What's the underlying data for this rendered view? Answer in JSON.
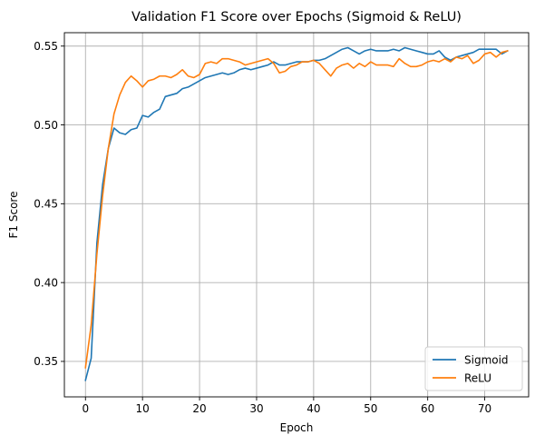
{
  "chart_data": {
    "type": "line",
    "title": "Validation F1 Score over Epochs (Sigmoid & ReLU)",
    "xlabel": "Epoch",
    "ylabel": "F1 Score",
    "xlim": [
      -3.7,
      77.7
    ],
    "ylim": [
      0.3275,
      0.5585
    ],
    "xticks": [
      0,
      10,
      20,
      30,
      40,
      50,
      60,
      70
    ],
    "yticks": [
      0.35,
      0.4,
      0.45,
      0.5,
      0.55
    ],
    "ytick_labels": [
      "0.35",
      "0.40",
      "0.45",
      "0.50",
      "0.55"
    ],
    "grid": true,
    "legend_position": "lower-right",
    "series": [
      {
        "name": "Sigmoid",
        "color": "#1f77b4",
        "x": [
          0,
          1,
          2,
          3,
          4,
          5,
          6,
          7,
          8,
          9,
          10,
          11,
          12,
          13,
          14,
          15,
          16,
          17,
          18,
          19,
          20,
          21,
          22,
          23,
          24,
          25,
          26,
          27,
          28,
          29,
          30,
          31,
          32,
          33,
          34,
          35,
          36,
          37,
          38,
          39,
          40,
          41,
          42,
          43,
          44,
          45,
          46,
          47,
          48,
          49,
          50,
          51,
          52,
          53,
          54,
          55,
          56,
          57,
          58,
          59,
          60,
          61,
          62,
          63,
          64,
          65,
          66,
          67,
          68,
          69,
          70,
          71,
          72,
          73,
          74
        ],
        "values": [
          0.338,
          0.352,
          0.425,
          0.462,
          0.485,
          0.498,
          0.495,
          0.494,
          0.497,
          0.498,
          0.506,
          0.505,
          0.508,
          0.51,
          0.518,
          0.519,
          0.52,
          0.523,
          0.524,
          0.526,
          0.528,
          0.53,
          0.531,
          0.532,
          0.533,
          0.532,
          0.533,
          0.535,
          0.536,
          0.535,
          0.536,
          0.537,
          0.538,
          0.54,
          0.538,
          0.538,
          0.539,
          0.54,
          0.54,
          0.54,
          0.541,
          0.541,
          0.542,
          0.544,
          0.546,
          0.548,
          0.549,
          0.547,
          0.545,
          0.547,
          0.548,
          0.547,
          0.547,
          0.547,
          0.548,
          0.547,
          0.549,
          0.548,
          0.547,
          0.546,
          0.545,
          0.545,
          0.547,
          0.543,
          0.541,
          0.543,
          0.544,
          0.545,
          0.546,
          0.548,
          0.548,
          0.548,
          0.548,
          0.545,
          0.547
        ]
      },
      {
        "name": "ReLU",
        "color": "#ff7f0e",
        "x": [
          0,
          1,
          2,
          3,
          4,
          5,
          6,
          7,
          8,
          9,
          10,
          11,
          12,
          13,
          14,
          15,
          16,
          17,
          18,
          19,
          20,
          21,
          22,
          23,
          24,
          25,
          26,
          27,
          28,
          29,
          30,
          31,
          32,
          33,
          34,
          35,
          36,
          37,
          38,
          39,
          40,
          41,
          42,
          43,
          44,
          45,
          46,
          47,
          48,
          49,
          50,
          51,
          52,
          53,
          54,
          55,
          56,
          57,
          58,
          59,
          60,
          61,
          62,
          63,
          64,
          65,
          66,
          67,
          68,
          69,
          70,
          71,
          72,
          73,
          74
        ],
        "values": [
          0.346,
          0.373,
          0.418,
          0.455,
          0.485,
          0.507,
          0.519,
          0.527,
          0.531,
          0.528,
          0.524,
          0.528,
          0.529,
          0.531,
          0.531,
          0.53,
          0.532,
          0.535,
          0.531,
          0.53,
          0.532,
          0.539,
          0.54,
          0.539,
          0.542,
          0.542,
          0.541,
          0.54,
          0.538,
          0.539,
          0.54,
          0.541,
          0.542,
          0.539,
          0.533,
          0.534,
          0.537,
          0.538,
          0.54,
          0.54,
          0.541,
          0.539,
          0.535,
          0.531,
          0.536,
          0.538,
          0.539,
          0.536,
          0.539,
          0.537,
          0.54,
          0.538,
          0.538,
          0.538,
          0.537,
          0.542,
          0.539,
          0.537,
          0.537,
          0.538,
          0.54,
          0.541,
          0.54,
          0.542,
          0.54,
          0.543,
          0.542,
          0.544,
          0.539,
          0.541,
          0.545,
          0.546,
          0.543,
          0.546,
          0.547
        ]
      }
    ]
  }
}
